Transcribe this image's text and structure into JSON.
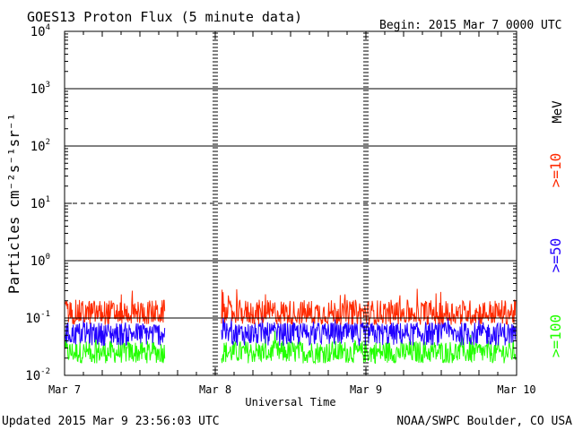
{
  "header": {
    "title": "GOES13 Proton Flux (5 minute data)",
    "begin": "Begin: 2015 Mar 7 0000 UTC"
  },
  "footer": {
    "updated": "Updated 2015 Mar  9 23:56:03 UTC",
    "credit": "NOAA/SWPC Boulder, CO USA"
  },
  "colors": {
    "ge10": "#ff2a00",
    "ge50": "#2200ff",
    "ge100": "#22ff00",
    "axis": "#000000",
    "background": "#ffffff"
  },
  "chart_data": {
    "type": "line",
    "title": "GOES13 Proton Flux (5 minute data)",
    "xlabel": "Universal Time",
    "ylabel": "Particles cm⁻²s⁻¹sr⁻¹",
    "yscale": "log",
    "ylim": [
      0.01,
      10000
    ],
    "xlim_days": [
      0,
      3
    ],
    "x_tick_labels": [
      "Mar 7",
      "Mar 8",
      "Mar 9",
      "Mar 10"
    ],
    "y_ticks": [
      {
        "base": "10",
        "exp": "-2",
        "value": 0.01
      },
      {
        "base": "10",
        "exp": "-1",
        "value": 0.1
      },
      {
        "base": "10",
        "exp": "0",
        "value": 1
      },
      {
        "base": "10",
        "exp": "1",
        "value": 10
      },
      {
        "base": "10",
        "exp": "2",
        "value": 100
      },
      {
        "base": "10",
        "exp": "3",
        "value": 1000
      },
      {
        "base": "10",
        "exp": "4",
        "value": 10000
      }
    ],
    "grid": "horizontal lines at decades, dashed at 10^1",
    "data_gap": [
      "Mar 7 ~16:00",
      "Mar 8 ~01:00"
    ],
    "unit_label": "MeV",
    "series": [
      {
        "name": ">=10",
        "color": "#ff2a00",
        "typical": 0.12,
        "min": 0.07,
        "max": 0.33
      },
      {
        "name": ">=50",
        "color": "#2200ff",
        "typical": 0.055,
        "min": 0.03,
        "max": 0.12
      },
      {
        "name": ">=100",
        "color": "#22ff00",
        "typical": 0.025,
        "min": 0.015,
        "max": 0.06
      }
    ]
  }
}
